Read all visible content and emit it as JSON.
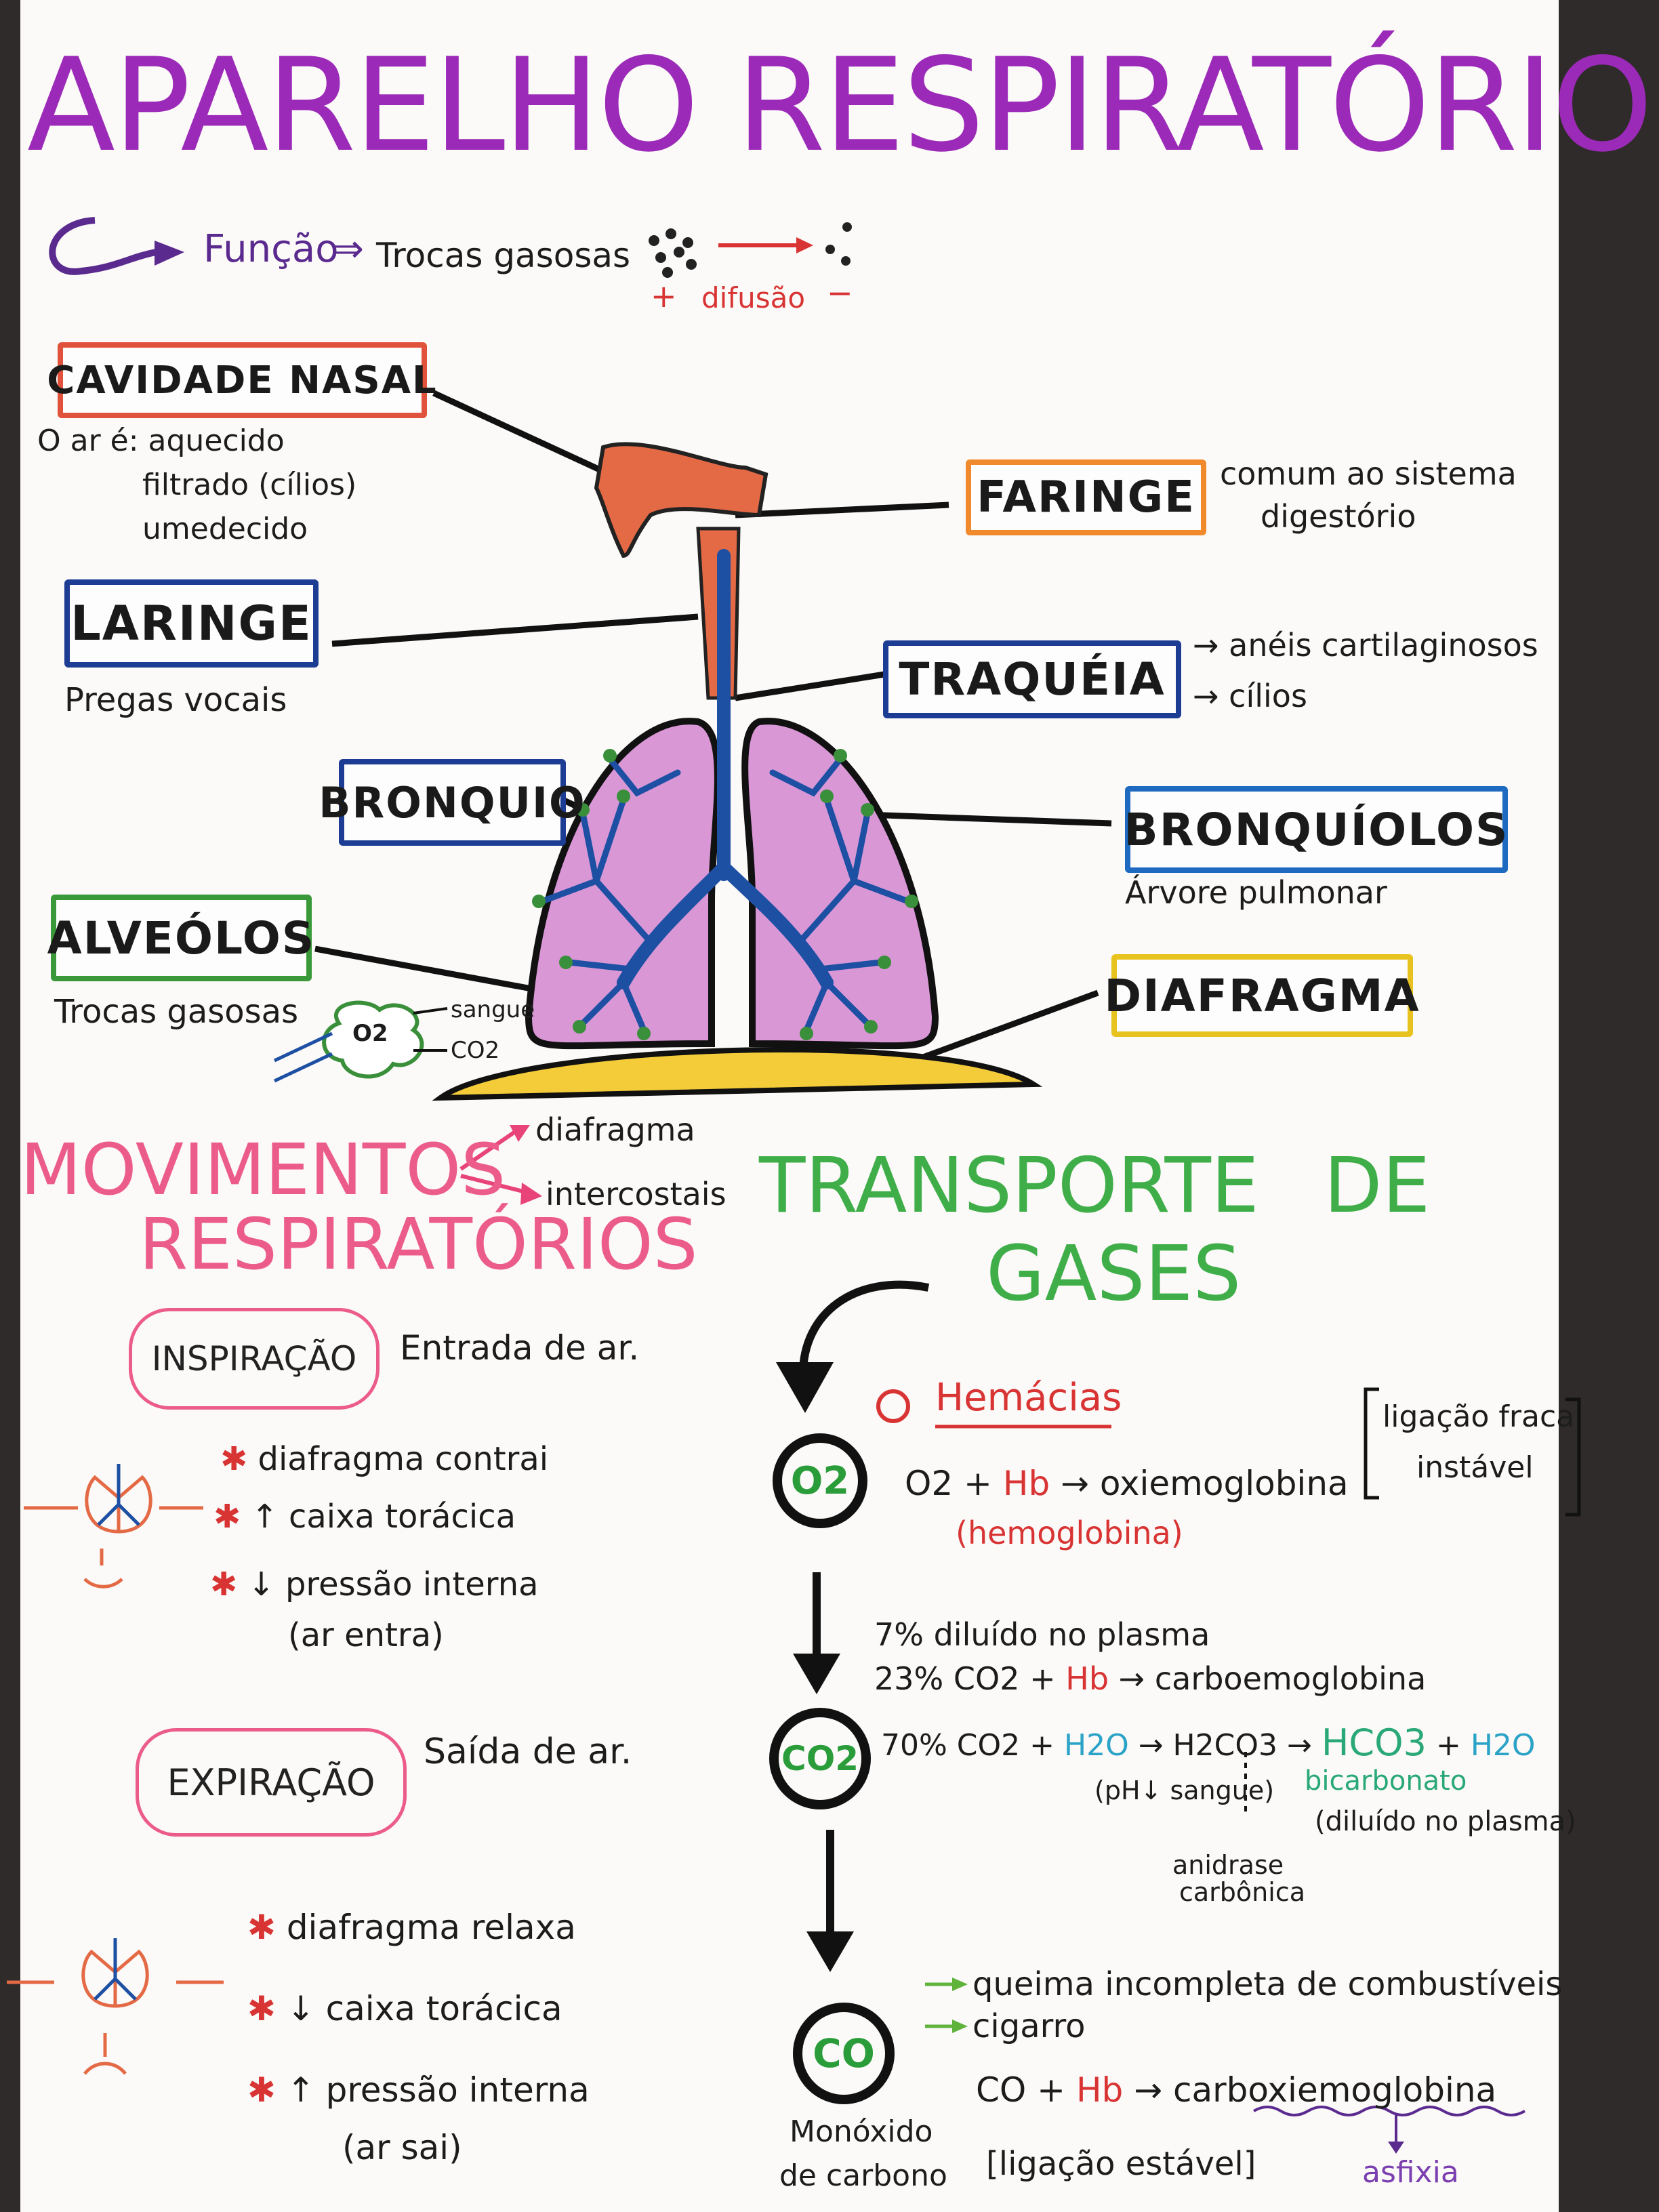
{
  "title": "APARELHO RESPIRATÓRIO",
  "intro": {
    "funcao": "Função",
    "trocas": "Trocas gasosas",
    "plus": "+",
    "difusao": "difusão",
    "minus": "−"
  },
  "labels": {
    "cavidade": "CAVIDADE NASAL",
    "cavidade_notes": [
      "O ar é: aquecido",
      "filtrado (cílios)",
      "umedecido"
    ],
    "faringe": "FARINGE",
    "faringe_notes": [
      "comum ao sistema",
      "digestório"
    ],
    "laringe": "LARINGE",
    "laringe_note": "Pregas vocais",
    "traqueia": "TRAQUÉIA",
    "traqueia_notes": [
      "anéis cartilaginosos",
      "cílios"
    ],
    "bronquio": "BRONQUIO",
    "bronquiolos": "BRONQUÍOLOS",
    "bronquiolos_note": "Árvore pulmonar",
    "alveolos": "ALVEÓLOS",
    "alveolos_note": "Trocas gasosas",
    "o2": "O2",
    "sangue": "sangue",
    "co2": "CO2",
    "diafragma": "DIAFRAGMA"
  },
  "movimentos": {
    "title1": "MOVIMENTOS",
    "title2": "RESPIRATÓRIOS",
    "branch1": "diafragma",
    "branch2": "intercostais",
    "inspiracao": "INSPIRAÇÃO",
    "inspiracao_desc": "Entrada de ar.",
    "insp_items": [
      "diafragma contrai",
      "↑ caixa torácica",
      "↓ pressão interna",
      "(ar entra)"
    ],
    "expiracao": "EXPIRAÇÃO",
    "expiracao_desc": "Saída de ar.",
    "exp_items": [
      "diafragma relaxa",
      "↓ caixa torácica",
      "↑ pressão interna",
      "(ar sai)"
    ]
  },
  "transporte": {
    "title1": "TRANSPORTE DE",
    "title2": "GASES",
    "hemacias": "Hemácias",
    "o2": "O2",
    "o2_eq_a": "O2 + ",
    "hb": "Hb",
    "o2_eq_b": " → oxiemoglobina",
    "hemoglobina": "(hemoglobina)",
    "ligacao": [
      "ligação fraca",
      "instável"
    ],
    "co2": "CO2",
    "co2_l1": "7% diluído no plasma",
    "co2_l2a": "23% CO2 + ",
    "co2_l2b": " → carboemoglobina",
    "co2_l3a": "70% CO2 + ",
    "h2o": "H2O",
    "co2_l3b": " → H2CO3 → ",
    "hco3": "HCO3",
    "plus": " + ",
    "ph": "(pH↓ sangue)",
    "bicarbonato": "bicarbonato",
    "diluido": "(diluído no plasma)",
    "anidrase": [
      "anidrase",
      "carbônica"
    ],
    "co": "CO",
    "co_causes": [
      "queima incompleta de combustíveis",
      "cigarro"
    ],
    "co_eq_a": "CO + ",
    "co_eq_b": " → ",
    "carboxi": "carboxiemoglobina",
    "monoxido": [
      "Monóxido",
      "de carbono"
    ],
    "estavel": "[ligação estável]",
    "asfixia": "asfixia"
  }
}
